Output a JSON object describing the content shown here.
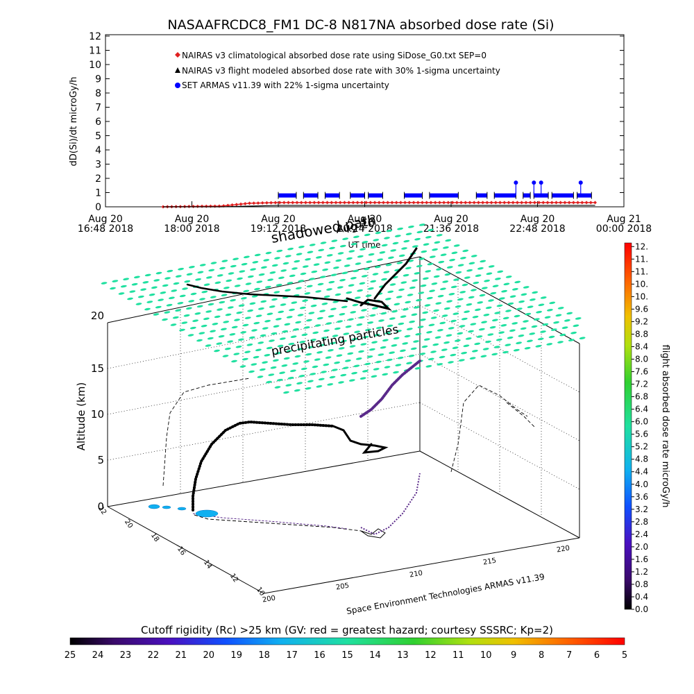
{
  "title": "NASAAFRCDC8_FM1 DC-8   N817NA absorbed dose rate (Si)",
  "colors": {
    "nairas_clim": "#e02020",
    "nairas_flight": "#000000",
    "armas": "#0000ff",
    "grid_mesh": "#20e0a0",
    "track_dark": "#000000",
    "track_purple": "#5a2a8a"
  },
  "chart_data": [
    {
      "type": "line",
      "ylabel": "dD(Si)/dt microGy/h",
      "xlabel": "UT time",
      "ylim": [
        0,
        12
      ],
      "yticks": [
        "0",
        "1",
        "2",
        "3",
        "4",
        "5",
        "6",
        "7",
        "8",
        "9",
        "10",
        "11",
        "12"
      ],
      "xticks": [
        {
          "day": "Aug 20",
          "time": "16:48 2018"
        },
        {
          "day": "Aug 20",
          "time": "18:00 2018"
        },
        {
          "day": "Aug 20",
          "time": "19:12 2018"
        },
        {
          "day": "Aug 20",
          "time": "20:24 2018"
        },
        {
          "day": "Aug 20",
          "time": "21:36 2018"
        },
        {
          "day": "Aug 20",
          "time": "22:48 2018"
        },
        {
          "day": "Aug 21",
          "time": "00:00 2018"
        }
      ],
      "legend": [
        "NAIRAS v3 climatological absorbed dose rate using SiDose_G0.txt SEP=0",
        "NAIRAS v3 flight modeled absorbed dose rate with 30% 1-sigma uncertainty",
        "SET ARMAS v11.39 with 22% 1-sigma uncertainty"
      ],
      "legend_placement": "top-center",
      "series": [
        {
          "name": "NAIRAS v3 climatological absorbed dose rate using SiDose_G0.txt SEP=0",
          "x_hours": [
            17.6,
            18.4,
            18.8,
            19.2,
            20.0,
            21.0,
            22.0,
            23.0,
            23.6
          ],
          "values": [
            0.0,
            0.05,
            0.25,
            0.3,
            0.3,
            0.3,
            0.3,
            0.3,
            0.3
          ]
        },
        {
          "name": "NAIRAS v3 flight modeled absorbed dose rate with 30% 1-sigma uncertainty",
          "x_hours": [
            17.6,
            18.4,
            18.8,
            19.2,
            20.0,
            21.0,
            22.0,
            23.0,
            23.6
          ],
          "values": [
            0.0,
            0.0,
            0.05,
            0.1,
            0.1,
            0.1,
            0.1,
            0.1,
            0.1
          ]
        },
        {
          "name": "SET ARMAS v11.39 with 22% 1-sigma uncertainty",
          "segments": [
            {
              "x_hours": [
                19.2,
                19.45
              ],
              "values": [
                0.8,
                0.8
              ]
            },
            {
              "x_hours": [
                19.55,
                19.75
              ],
              "values": [
                0.8,
                0.8
              ]
            },
            {
              "x_hours": [
                19.85,
                20.05
              ],
              "values": [
                0.8,
                0.8
              ]
            },
            {
              "x_hours": [
                20.2,
                20.4
              ],
              "values": [
                0.8,
                0.8
              ]
            },
            {
              "x_hours": [
                20.45,
                20.65
              ],
              "values": [
                0.8,
                0.8
              ]
            },
            {
              "x_hours": [
                20.95,
                21.2
              ],
              "values": [
                0.8,
                0.8
              ]
            },
            {
              "x_hours": [
                21.3,
                21.7
              ],
              "values": [
                0.8,
                0.8
              ]
            },
            {
              "x_hours": [
                21.95,
                22.1
              ],
              "values": [
                0.8,
                0.8
              ]
            },
            {
              "x_hours": [
                22.2,
                22.5
              ],
              "values": [
                0.8,
                0.8
              ]
            },
            {
              "x_hours": [
                22.6,
                22.7
              ],
              "values": [
                0.8,
                0.8
              ]
            },
            {
              "x_hours": [
                22.75,
                22.95
              ],
              "values": [
                0.8,
                0.8
              ]
            },
            {
              "x_hours": [
                23.0,
                23.3
              ],
              "values": [
                0.8,
                0.8
              ]
            },
            {
              "x_hours": [
                23.35,
                23.55
              ],
              "values": [
                0.8,
                0.8
              ]
            }
          ],
          "spikes": [
            {
              "x_hour": 22.5,
              "value": 1.7
            },
            {
              "x_hour": 22.75,
              "value": 1.7
            },
            {
              "x_hour": 22.85,
              "value": 1.7
            },
            {
              "x_hour": 23.4,
              "value": 1.7
            }
          ]
        }
      ]
    },
    {
      "type": "scatter",
      "zlabel": "Altitude (km)",
      "ztick_labels": [
        "0",
        "5",
        "10",
        "15",
        "20"
      ],
      "lat_tick_labels": [
        "22",
        "20",
        "18",
        "16",
        "14",
        "12",
        "10"
      ],
      "lon_tick_labels": [
        "200",
        "205",
        "210",
        "215",
        "220"
      ],
      "annotations": [
        "shadowed path",
        "Aug 20",
        "precipitating particles"
      ],
      "footer": "Space Environment Technologies ARMAS v11.39",
      "colorbar_ticks": [
        "0.0",
        "0.4",
        "0.8",
        "1.2",
        "1.6",
        "2.0",
        "2.4",
        "2.8",
        "3.2",
        "3.6",
        "4.0",
        "4.4",
        "4.8",
        "5.2",
        "5.6",
        "6.0",
        "6.4",
        "6.8",
        "7.2",
        "7.6",
        "8.0",
        "8.4",
        "8.8",
        "9.2",
        "9.6",
        "10.",
        "10.",
        "11.",
        "11.",
        "12."
      ],
      "colorbar_label": "flight absorbed dose rate microGy/h",
      "colorbar_range": [
        0,
        12
      ]
    }
  ],
  "bottom_colorbar": {
    "label": "Cutoff rigidity (Rc) >25 km (GV: red = greatest hazard; courtesy SSSRC; Kp=2)",
    "ticks": [
      "25",
      "24",
      "23",
      "22",
      "21",
      "20",
      "19",
      "18",
      "17",
      "16",
      "15",
      "14",
      "13",
      "12",
      "11",
      "10",
      "9",
      "8",
      "7",
      "6",
      "5"
    ]
  }
}
